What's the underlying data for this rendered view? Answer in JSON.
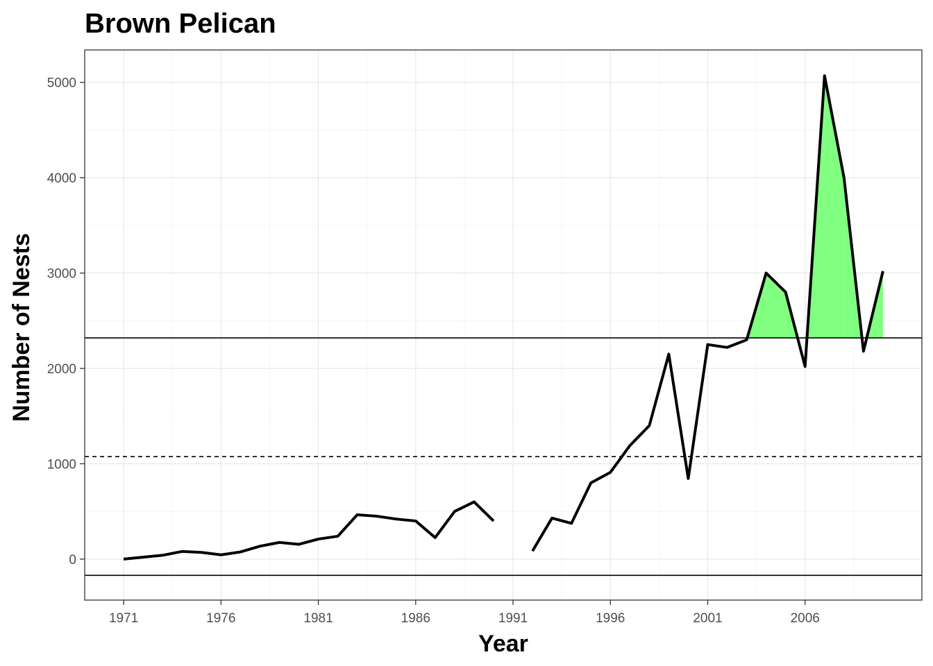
{
  "chart_data": {
    "type": "line",
    "title": "Brown Pelican",
    "xlabel": "Year",
    "ylabel": "Number of Nests",
    "xlim": [
      1969,
      2012
    ],
    "ylim": [
      -430,
      5340
    ],
    "x_ticks": [
      1971,
      1976,
      1981,
      1986,
      1991,
      1996,
      2001,
      2006
    ],
    "y_ticks": [
      0,
      1000,
      2000,
      3000,
      4000,
      5000
    ],
    "grid": true,
    "legend": "none",
    "series": [
      {
        "x": [
          1971,
          1972,
          1973,
          1974,
          1975,
          1976,
          1977,
          1978,
          1979,
          1980,
          1981,
          1982,
          1983,
          1984,
          1985,
          1986,
          1987,
          1988,
          1989,
          1990,
          1991,
          1992,
          1993,
          1994,
          1995,
          1996,
          1997,
          1998,
          1999,
          2000,
          2001,
          2002,
          2003,
          2004,
          2005,
          2006,
          2007,
          2008,
          2009,
          2010
        ],
        "y": [
          0,
          20,
          40,
          80,
          70,
          45,
          75,
          135,
          175,
          155,
          210,
          240,
          465,
          450,
          420,
          400,
          225,
          500,
          600,
          400,
          null,
          85,
          430,
          375,
          800,
          910,
          1190,
          1400,
          2150,
          845,
          2250,
          2220,
          2300,
          3000,
          2800,
          2020,
          5070,
          4000,
          2180,
          3020
        ]
      }
    ],
    "reference_lines": [
      {
        "style": "solid",
        "y": 2320
      },
      {
        "style": "dashed",
        "y": 1075
      },
      {
        "style": "solid",
        "y": -170
      }
    ],
    "highlight": {
      "above": 2320,
      "color": "#80ff80"
    }
  }
}
